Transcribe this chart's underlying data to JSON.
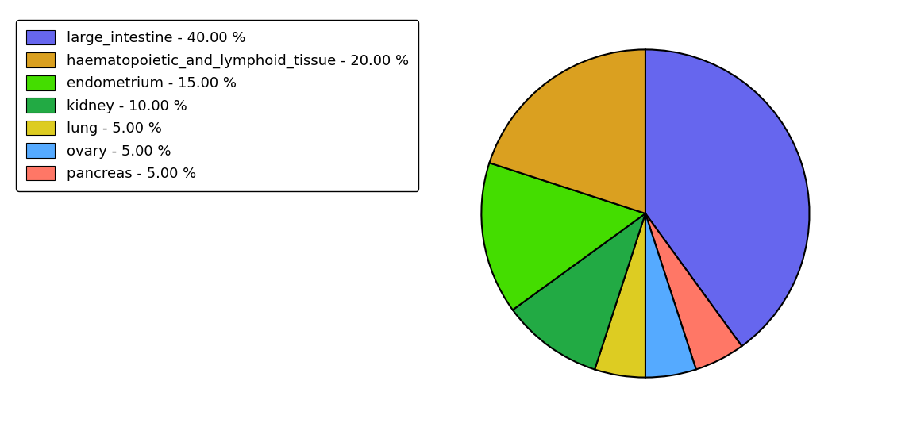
{
  "labels": [
    "large_intestine",
    "haematopoietic_and_lymphoid_tissue",
    "endometrium",
    "kidney",
    "lung",
    "ovary",
    "pancreas"
  ],
  "values": [
    40.0,
    20.0,
    15.0,
    10.0,
    5.0,
    5.0,
    5.0
  ],
  "colors": [
    "#6666ee",
    "#daa020",
    "#44dd00",
    "#22aa44",
    "#ddcc22",
    "#55aaff",
    "#ff7766"
  ],
  "legend_labels": [
    "large_intestine - 40.00 %",
    "haematopoietic_and_lymphoid_tissue - 20.00 %",
    "endometrium - 15.00 %",
    "kidney - 10.00 %",
    "lung - 5.00 %",
    "ovary - 5.00 %",
    "pancreas - 5.00 %"
  ],
  "pie_order": [
    0,
    6,
    5,
    4,
    3,
    2,
    1
  ],
  "startangle": 90,
  "linewidth": 1.5,
  "legend_fontsize": 13,
  "figsize": [
    11.45,
    5.38
  ],
  "dpi": 100
}
